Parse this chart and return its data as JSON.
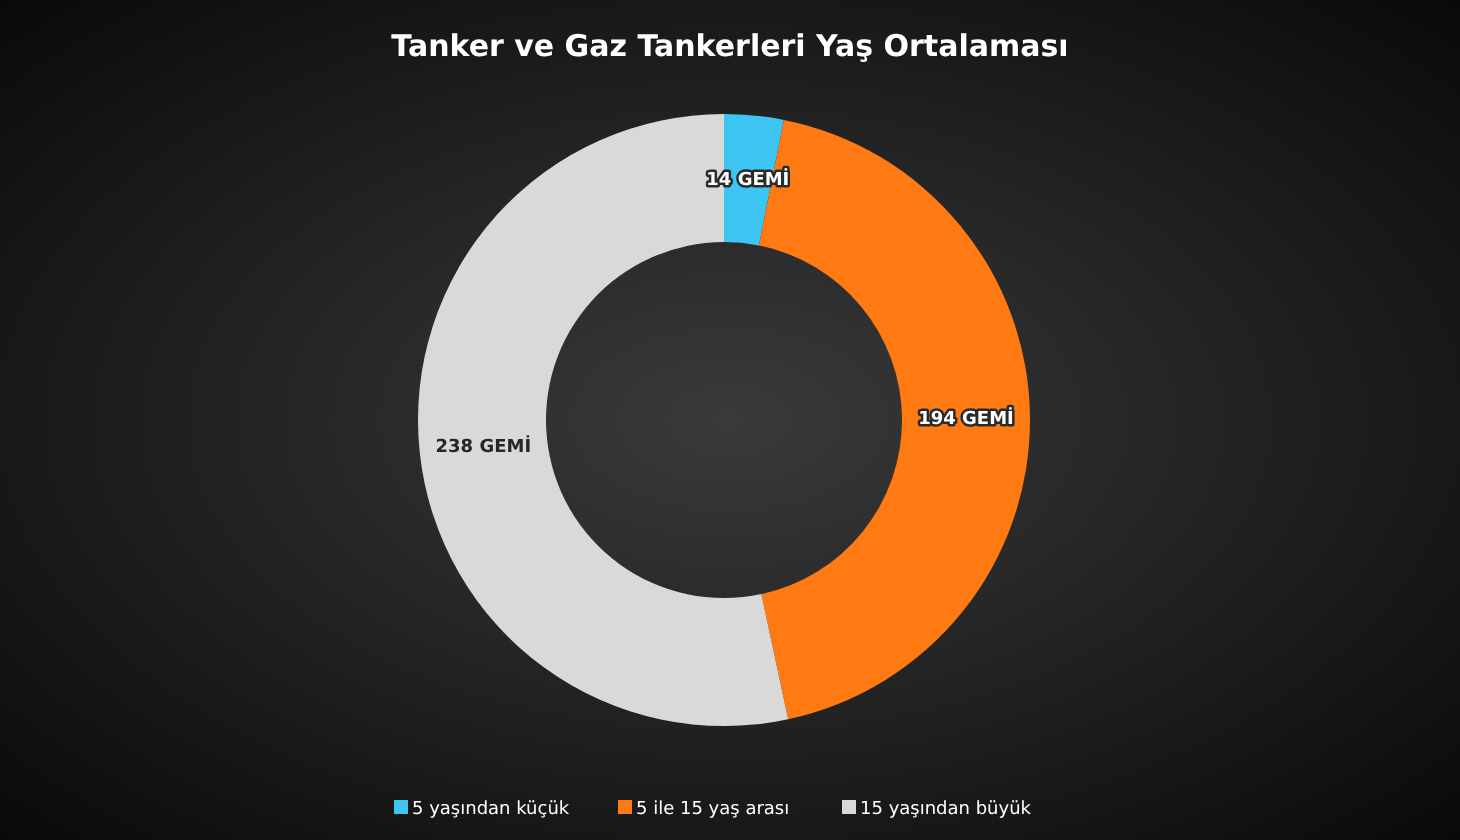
{
  "chart_data": {
    "type": "donut",
    "title": "Tanker ve Gaz Tankerleri Yaş Ortalaması",
    "categories": [
      "5 yaşından küçük",
      "5 ile 15 yaş arası",
      "15 yaşından büyük"
    ],
    "values": [
      14,
      194,
      238
    ],
    "colors": [
      "#3ec6f2",
      "#ff7a12",
      "#d9d9d9"
    ],
    "value_labels": [
      "14 GEMİ",
      "194 GEMİ",
      "238 GEMİ"
    ],
    "legend": "bottom"
  }
}
